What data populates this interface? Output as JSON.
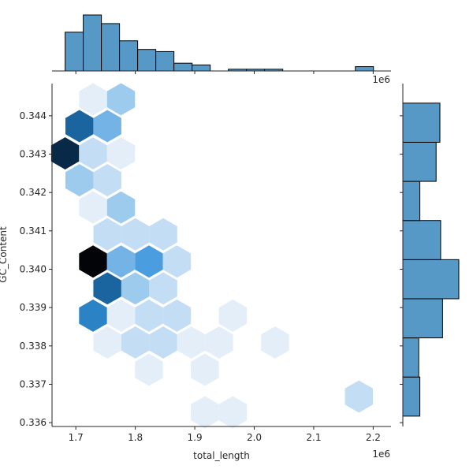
{
  "chart_data": {
    "type": "hexbin-jointplot",
    "xlabel": "total_length",
    "ylabel": "GC_Content",
    "x_offset_label": "1e6",
    "top_offset_label": "1e6",
    "xlim": [
      1.66,
      2.23
    ],
    "ylim": [
      0.3359,
      0.34484
    ],
    "x_ticks": [
      {
        "value": 1.7,
        "label": "1.7"
      },
      {
        "value": 1.8,
        "label": "1.8"
      },
      {
        "value": 1.9,
        "label": "1.9"
      },
      {
        "value": 2.0,
        "label": "2.0"
      },
      {
        "value": 2.1,
        "label": "2.1"
      },
      {
        "value": 2.2,
        "label": "2.2"
      }
    ],
    "y_ticks": [
      {
        "value": 0.336,
        "label": "0.336"
      },
      {
        "value": 0.337,
        "label": "0.337"
      },
      {
        "value": 0.338,
        "label": "0.338"
      },
      {
        "value": 0.339,
        "label": "0.339"
      },
      {
        "value": 0.34,
        "label": "0.340"
      },
      {
        "value": 0.341,
        "label": "0.341"
      },
      {
        "value": 0.342,
        "label": "0.342"
      },
      {
        "value": 0.343,
        "label": "0.343"
      },
      {
        "value": 0.344,
        "label": "0.344"
      }
    ],
    "hexbins": [
      {
        "x": 1.729,
        "y": 0.34443,
        "count": 1
      },
      {
        "x": 1.776,
        "y": 0.34443,
        "count": 3
      },
      {
        "x": 1.706,
        "y": 0.34373,
        "count": 7
      },
      {
        "x": 1.753,
        "y": 0.34373,
        "count": 4
      },
      {
        "x": 1.682,
        "y": 0.34302,
        "count": 9
      },
      {
        "x": 1.729,
        "y": 0.34302,
        "count": 2
      },
      {
        "x": 1.776,
        "y": 0.34302,
        "count": 1
      },
      {
        "x": 1.706,
        "y": 0.34232,
        "count": 3
      },
      {
        "x": 1.753,
        "y": 0.34232,
        "count": 2
      },
      {
        "x": 1.729,
        "y": 0.34161,
        "count": 1
      },
      {
        "x": 1.776,
        "y": 0.34161,
        "count": 3
      },
      {
        "x": 1.753,
        "y": 0.34091,
        "count": 2
      },
      {
        "x": 1.8,
        "y": 0.34091,
        "count": 1.5
      },
      {
        "x": 1.847,
        "y": 0.34091,
        "count": 1.5
      },
      {
        "x": 1.729,
        "y": 0.3402,
        "count": 10
      },
      {
        "x": 1.776,
        "y": 0.3402,
        "count": 4
      },
      {
        "x": 1.823,
        "y": 0.3402,
        "count": 4.5
      },
      {
        "x": 1.87,
        "y": 0.3402,
        "count": 2
      },
      {
        "x": 1.753,
        "y": 0.3395,
        "count": 7
      },
      {
        "x": 1.8,
        "y": 0.3395,
        "count": 3
      },
      {
        "x": 1.847,
        "y": 0.3395,
        "count": 1.5
      },
      {
        "x": 1.729,
        "y": 0.33879,
        "count": 6
      },
      {
        "x": 1.776,
        "y": 0.33879,
        "count": 1
      },
      {
        "x": 1.823,
        "y": 0.33879,
        "count": 1.5
      },
      {
        "x": 1.87,
        "y": 0.33879,
        "count": 1.5
      },
      {
        "x": 1.964,
        "y": 0.33879,
        "count": 1
      },
      {
        "x": 1.753,
        "y": 0.33809,
        "count": 1
      },
      {
        "x": 1.8,
        "y": 0.33809,
        "count": 1.5
      },
      {
        "x": 1.847,
        "y": 0.33809,
        "count": 1.5
      },
      {
        "x": 1.894,
        "y": 0.33809,
        "count": 1
      },
      {
        "x": 1.941,
        "y": 0.33809,
        "count": 1
      },
      {
        "x": 2.035,
        "y": 0.33809,
        "count": 1
      },
      {
        "x": 1.823,
        "y": 0.33738,
        "count": 1
      },
      {
        "x": 1.917,
        "y": 0.33738,
        "count": 1
      },
      {
        "x": 2.176,
        "y": 0.33668,
        "count": 1.5
      },
      {
        "x": 1.917,
        "y": 0.33627,
        "count": 1
      },
      {
        "x": 1.964,
        "y": 0.33627,
        "count": 1
      }
    ],
    "hex_radius_x": 0.0235,
    "count_max": 10,
    "x_histogram": {
      "bins": [
        1.682,
        1.7125,
        1.743,
        1.7735,
        1.804,
        1.8345,
        1.865,
        1.8955,
        1.926,
        1.9565,
        1.987,
        2.0175,
        2.048,
        2.0785,
        2.109,
        2.1395,
        2.17,
        2.2005
      ],
      "counts": [
        9,
        13,
        11,
        7,
        5,
        4.5,
        1.8,
        1.4,
        0,
        0.4,
        0.4,
        0.4,
        0,
        0,
        0,
        0,
        1
      ]
    },
    "y_histogram": {
      "bins": [
        0.33617,
        0.33719,
        0.33821,
        0.33923,
        0.34025,
        0.34127,
        0.34229,
        0.34331,
        0.34433
      ],
      "counts": [
        4.5,
        4.2,
        10.5,
        14.8,
        10,
        4.5,
        8.8,
        9.8
      ]
    },
    "colors": {
      "edge": "#000000",
      "bar": "#5799c6",
      "scale": [
        "#e4eef9",
        "#c2ddf4",
        "#9ccbee",
        "#73b3e6",
        "#4a9ee0",
        "#2b82c4",
        "#1a64a0",
        "#0f4670",
        "#082a48",
        "#020407"
      ]
    }
  }
}
